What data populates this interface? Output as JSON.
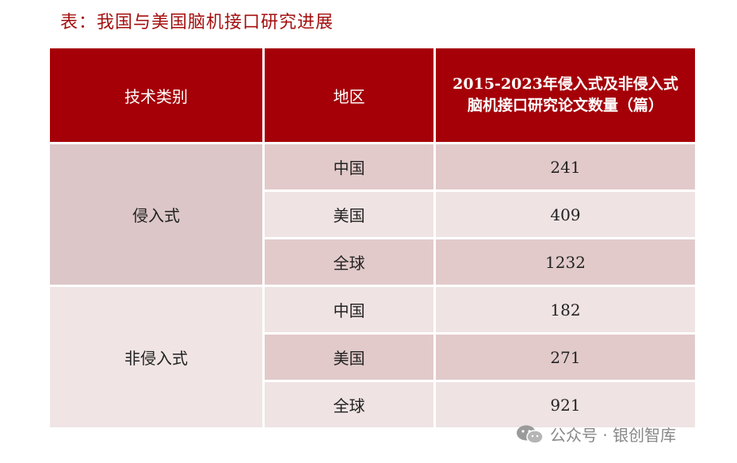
{
  "title": "表：我国与美国脑机接口研究进展",
  "table": {
    "headers": [
      "技术类别",
      "地区",
      "2015-2023年侵入式及非侵入式\n脑机接口研究论文数量（篇）"
    ],
    "header3_line1": "2015-2023年侵入式及非侵入式",
    "header3_line2": "脑机接口研究论文数量（篇）",
    "groups": [
      {
        "category": "侵入式",
        "rows": [
          {
            "region": "中国",
            "count": "241"
          },
          {
            "region": "美国",
            "count": "409"
          },
          {
            "region": "全球",
            "count": "1232"
          }
        ]
      },
      {
        "category": "非侵入式",
        "rows": [
          {
            "region": "中国",
            "count": "182"
          },
          {
            "region": "美国",
            "count": "271"
          },
          {
            "region": "全球",
            "count": "921"
          }
        ]
      }
    ]
  },
  "watermark": {
    "text": "公众号 · 银创智库",
    "icon": "wechat-icon"
  }
}
